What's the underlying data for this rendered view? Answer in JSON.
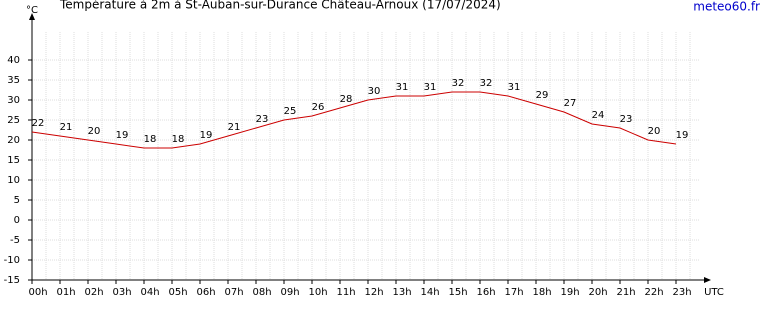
{
  "chart_data": {
    "type": "line",
    "title": "Température à 2m à St-Auban-sur-Durance Château-Arnoux (17/07/2024)",
    "y_label": "°C",
    "x_label": "UTC",
    "source": "meteo60.fr",
    "categories": [
      "00h",
      "01h",
      "02h",
      "03h",
      "04h",
      "05h",
      "06h",
      "07h",
      "08h",
      "09h",
      "10h",
      "11h",
      "12h",
      "13h",
      "14h",
      "15h",
      "16h",
      "17h",
      "18h",
      "19h",
      "20h",
      "21h",
      "22h",
      "23h"
    ],
    "series": [
      {
        "name": "Température",
        "color": "#cc0000",
        "values": [
          22,
          21,
          20,
          19,
          18,
          18,
          19,
          21,
          23,
          25,
          26,
          28,
          30,
          31,
          31,
          32,
          32,
          31,
          29,
          27,
          24,
          23,
          20,
          19
        ]
      }
    ],
    "ylim": [
      -15,
      47
    ],
    "yticks": [
      -15,
      -10,
      -5,
      0,
      5,
      10,
      15,
      20,
      25,
      30,
      35,
      40
    ],
    "grid": true
  }
}
